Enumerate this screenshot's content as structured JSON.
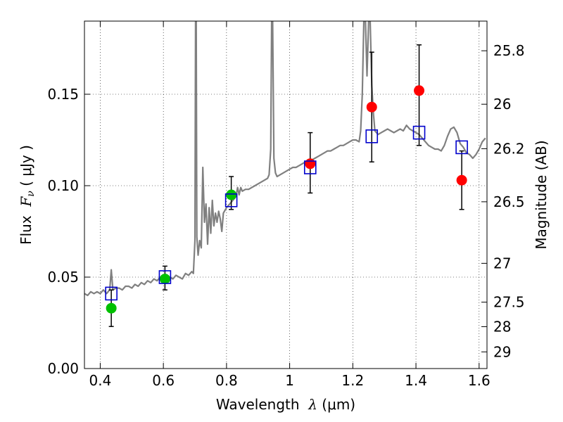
{
  "chart_data": {
    "type": "scatter",
    "title": "",
    "xlabel": {
      "prefix": "Wavelength  ",
      "symbol": "λ",
      "units": " (μm)"
    },
    "ylabel": {
      "prefix": "Flux  ",
      "symbol": "F",
      "subscript": "ν",
      "units": " ( μJy )"
    },
    "y2label": "Magnitude (AB)",
    "xlim": [
      0.35,
      1.625
    ],
    "ylim": [
      0.0,
      0.19
    ],
    "grid": true,
    "x_ticks": [
      {
        "value": 0.4,
        "label": "0.4"
      },
      {
        "value": 0.6,
        "label": "0.6"
      },
      {
        "value": 0.8,
        "label": "0.8"
      },
      {
        "value": 1.0,
        "label": "1"
      },
      {
        "value": 1.2,
        "label": "1.2"
      },
      {
        "value": 1.4,
        "label": "1.4"
      },
      {
        "value": 1.6,
        "label": "1.6"
      }
    ],
    "y_ticks": [
      {
        "value": 0.0,
        "label": "0.00"
      },
      {
        "value": 0.05,
        "label": "0.05"
      },
      {
        "value": 0.1,
        "label": "0.10"
      },
      {
        "value": 0.15,
        "label": "0.15"
      }
    ],
    "y2_ticks": [
      {
        "value": 25.8,
        "label": "25.8"
      },
      {
        "value": 26.0,
        "label": "26"
      },
      {
        "value": 26.2,
        "label": "26.2"
      },
      {
        "value": 26.5,
        "label": "26.5"
      },
      {
        "value": 27.0,
        "label": "27"
      },
      {
        "value": 27.5,
        "label": "27.5"
      },
      {
        "value": 28.0,
        "label": "28"
      },
      {
        "value": 29.0,
        "label": "29"
      }
    ],
    "series": [
      {
        "kind": "line",
        "color": "#808080",
        "points": [
          [
            0.35,
            0.041
          ],
          [
            0.36,
            0.04
          ],
          [
            0.37,
            0.042
          ],
          [
            0.38,
            0.041
          ],
          [
            0.39,
            0.042
          ],
          [
            0.4,
            0.041
          ],
          [
            0.41,
            0.043
          ],
          [
            0.42,
            0.041
          ],
          [
            0.43,
            0.043
          ],
          [
            0.435,
            0.054
          ],
          [
            0.44,
            0.043
          ],
          [
            0.45,
            0.044
          ],
          [
            0.46,
            0.044
          ],
          [
            0.47,
            0.043
          ],
          [
            0.48,
            0.045
          ],
          [
            0.49,
            0.045
          ],
          [
            0.5,
            0.044
          ],
          [
            0.51,
            0.046
          ],
          [
            0.52,
            0.045
          ],
          [
            0.53,
            0.047
          ],
          [
            0.54,
            0.046
          ],
          [
            0.55,
            0.048
          ],
          [
            0.56,
            0.047
          ],
          [
            0.57,
            0.049
          ],
          [
            0.58,
            0.048
          ],
          [
            0.59,
            0.05
          ],
          [
            0.6,
            0.049
          ],
          [
            0.61,
            0.051
          ],
          [
            0.62,
            0.05
          ],
          [
            0.63,
            0.049
          ],
          [
            0.64,
            0.051
          ],
          [
            0.65,
            0.05
          ],
          [
            0.66,
            0.049
          ],
          [
            0.67,
            0.052
          ],
          [
            0.68,
            0.051
          ],
          [
            0.69,
            0.053
          ],
          [
            0.695,
            0.052
          ],
          [
            0.7,
            0.07
          ],
          [
            0.702,
            0.19
          ],
          [
            0.704,
            0.19
          ],
          [
            0.706,
            0.072
          ],
          [
            0.71,
            0.062
          ],
          [
            0.715,
            0.07
          ],
          [
            0.72,
            0.066
          ],
          [
            0.725,
            0.11
          ],
          [
            0.73,
            0.08
          ],
          [
            0.735,
            0.09
          ],
          [
            0.74,
            0.068
          ],
          [
            0.745,
            0.088
          ],
          [
            0.75,
            0.074
          ],
          [
            0.755,
            0.092
          ],
          [
            0.76,
            0.078
          ],
          [
            0.765,
            0.085
          ],
          [
            0.77,
            0.08
          ],
          [
            0.775,
            0.086
          ],
          [
            0.78,
            0.082
          ],
          [
            0.785,
            0.075
          ],
          [
            0.79,
            0.085
          ],
          [
            0.8,
            0.088
          ],
          [
            0.81,
            0.09
          ],
          [
            0.82,
            0.092
          ],
          [
            0.83,
            0.094
          ],
          [
            0.835,
            0.099
          ],
          [
            0.84,
            0.095
          ],
          [
            0.845,
            0.099
          ],
          [
            0.85,
            0.097
          ],
          [
            0.86,
            0.098
          ],
          [
            0.87,
            0.098
          ],
          [
            0.88,
            0.099
          ],
          [
            0.89,
            0.1
          ],
          [
            0.9,
            0.101
          ],
          [
            0.91,
            0.102
          ],
          [
            0.92,
            0.103
          ],
          [
            0.93,
            0.104
          ],
          [
            0.935,
            0.106
          ],
          [
            0.94,
            0.12
          ],
          [
            0.943,
            0.19
          ],
          [
            0.946,
            0.19
          ],
          [
            0.95,
            0.115
          ],
          [
            0.955,
            0.107
          ],
          [
            0.96,
            0.105
          ],
          [
            0.97,
            0.106
          ],
          [
            0.98,
            0.107
          ],
          [
            0.99,
            0.108
          ],
          [
            1.0,
            0.109
          ],
          [
            1.01,
            0.11
          ],
          [
            1.02,
            0.11
          ],
          [
            1.03,
            0.111
          ],
          [
            1.04,
            0.112
          ],
          [
            1.05,
            0.113
          ],
          [
            1.06,
            0.113
          ],
          [
            1.07,
            0.114
          ],
          [
            1.08,
            0.115
          ],
          [
            1.09,
            0.116
          ],
          [
            1.1,
            0.117
          ],
          [
            1.11,
            0.118
          ],
          [
            1.12,
            0.119
          ],
          [
            1.13,
            0.119
          ],
          [
            1.14,
            0.12
          ],
          [
            1.15,
            0.121
          ],
          [
            1.16,
            0.122
          ],
          [
            1.17,
            0.122
          ],
          [
            1.18,
            0.123
          ],
          [
            1.19,
            0.124
          ],
          [
            1.2,
            0.125
          ],
          [
            1.21,
            0.125
          ],
          [
            1.22,
            0.124
          ],
          [
            1.225,
            0.13
          ],
          [
            1.23,
            0.15
          ],
          [
            1.235,
            0.19
          ],
          [
            1.24,
            0.19
          ],
          [
            1.245,
            0.16
          ],
          [
            1.25,
            0.19
          ],
          [
            1.255,
            0.19
          ],
          [
            1.26,
            0.155
          ],
          [
            1.265,
            0.14
          ],
          [
            1.27,
            0.13
          ],
          [
            1.28,
            0.128
          ],
          [
            1.29,
            0.129
          ],
          [
            1.3,
            0.13
          ],
          [
            1.31,
            0.131
          ],
          [
            1.32,
            0.13
          ],
          [
            1.33,
            0.129
          ],
          [
            1.34,
            0.13
          ],
          [
            1.35,
            0.131
          ],
          [
            1.36,
            0.13
          ],
          [
            1.37,
            0.133
          ],
          [
            1.38,
            0.131
          ],
          [
            1.39,
            0.13
          ],
          [
            1.4,
            0.129
          ],
          [
            1.41,
            0.128
          ],
          [
            1.42,
            0.126
          ],
          [
            1.43,
            0.124
          ],
          [
            1.44,
            0.122
          ],
          [
            1.45,
            0.121
          ],
          [
            1.46,
            0.12
          ],
          [
            1.47,
            0.12
          ],
          [
            1.48,
            0.119
          ],
          [
            1.49,
            0.122
          ],
          [
            1.5,
            0.127
          ],
          [
            1.51,
            0.131
          ],
          [
            1.52,
            0.132
          ],
          [
            1.53,
            0.129
          ],
          [
            1.54,
            0.123
          ],
          [
            1.55,
            0.121
          ],
          [
            1.56,
            0.118
          ],
          [
            1.57,
            0.117
          ],
          [
            1.58,
            0.115
          ],
          [
            1.59,
            0.117
          ],
          [
            1.6,
            0.12
          ],
          [
            1.61,
            0.124
          ],
          [
            1.62,
            0.126
          ]
        ]
      },
      {
        "kind": "markers",
        "marker": "circle",
        "color": "#00c000",
        "x": [
          0.435,
          0.605,
          0.815
        ],
        "y": [
          0.033,
          0.049,
          0.095
        ],
        "yerr_low": [
          0.023,
          0.043,
          0.087
        ],
        "yerr_high": [
          0.043,
          0.056,
          0.105
        ]
      },
      {
        "kind": "markers",
        "marker": "circle",
        "color": "#ff0000",
        "x": [
          1.065,
          1.26,
          1.41,
          1.545
        ],
        "y": [
          0.112,
          0.143,
          0.152,
          0.103
        ],
        "yerr_low": [
          0.096,
          0.113,
          0.122,
          0.087
        ],
        "yerr_high": [
          0.129,
          0.173,
          0.177,
          0.119
        ]
      },
      {
        "kind": "markers",
        "marker": "open-square",
        "color": "#0000cc",
        "x": [
          0.435,
          0.605,
          0.815,
          1.065,
          1.26,
          1.41,
          1.545
        ],
        "y": [
          0.041,
          0.05,
          0.092,
          0.11,
          0.127,
          0.129,
          0.121
        ]
      }
    ]
  }
}
